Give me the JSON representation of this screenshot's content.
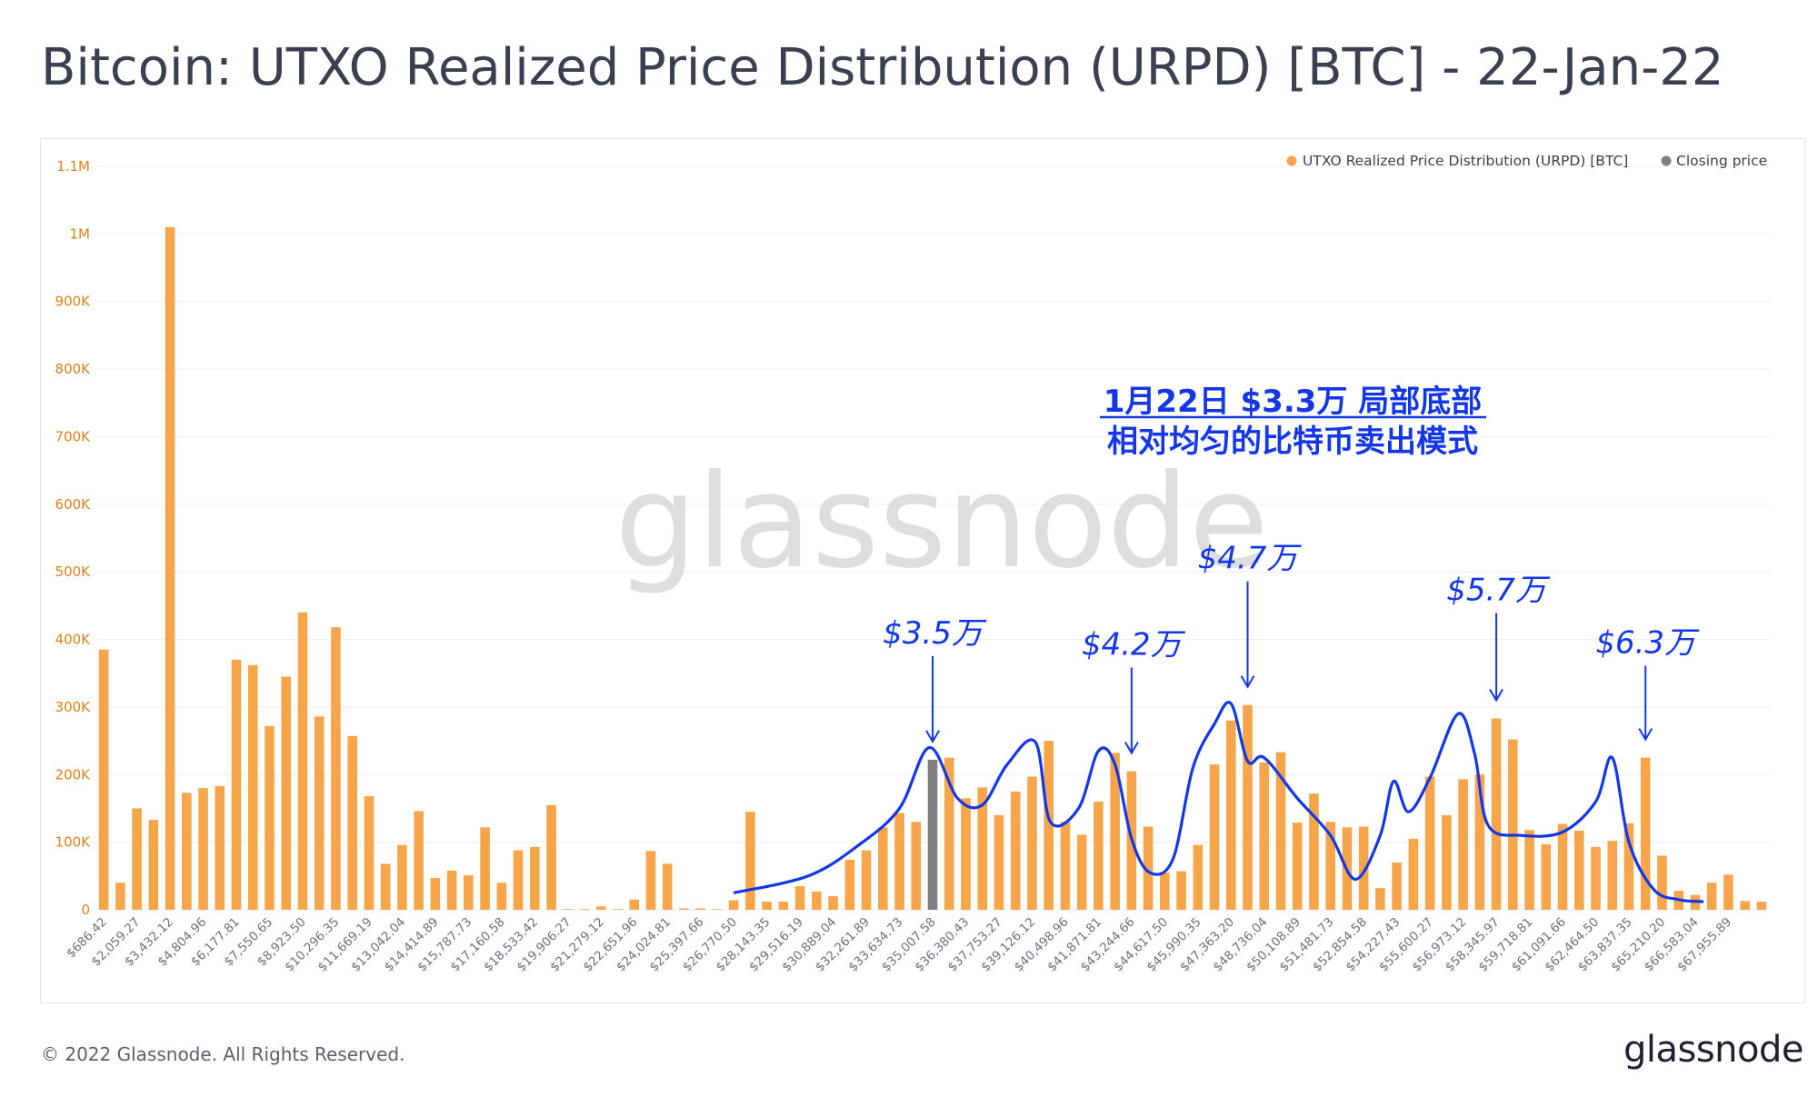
{
  "title": "Bitcoin: UTXO Realized Price Distribution (URPD) [BTC] - 22-Jan-22",
  "footer": {
    "copyright": "© 2022 Glassnode. All Rights Reserved.",
    "brand": "glassnode"
  },
  "watermark": "glassnode",
  "colors": {
    "bar": "#f7a54a",
    "closing": "#808080",
    "overlay": "#1236e8",
    "axis_text": "#e0801a"
  },
  "chart_data": {
    "type": "bar",
    "title": "Bitcoin: UTXO Realized Price Distribution (URPD) [BTC] - 22-Jan-22",
    "ylim": [
      0,
      1100000
    ],
    "yticks": [
      {
        "v": 0,
        "label": "0"
      },
      {
        "v": 100000,
        "label": "100K"
      },
      {
        "v": 200000,
        "label": "200K"
      },
      {
        "v": 300000,
        "label": "300K"
      },
      {
        "v": 400000,
        "label": "400K"
      },
      {
        "v": 500000,
        "label": "500K"
      },
      {
        "v": 600000,
        "label": "600K"
      },
      {
        "v": 700000,
        "label": "700K"
      },
      {
        "v": 800000,
        "label": "800K"
      },
      {
        "v": 900000,
        "label": "900K"
      },
      {
        "v": 1000000,
        "label": "1M"
      },
      {
        "v": 1100000,
        "label": "1.1M"
      }
    ],
    "legend": {
      "position": "top-right",
      "entries": [
        {
          "name": "UTXO Realized Price Distribution (URPD) [BTC]",
          "color": "#f7a54a"
        },
        {
          "name": "Closing price",
          "color": "#808080"
        }
      ]
    },
    "x_tick_labels": [
      "$686.42",
      "$2,059.27",
      "$3,432.12",
      "$4,804.96",
      "$6,177.81",
      "$7,550.65",
      "$8,923.50",
      "$10,296.35",
      "$11,669.19",
      "$13,042.04",
      "$14,414.89",
      "$15,787.73",
      "$17,160.58",
      "$18,533.42",
      "$19,906.27",
      "$21,279.12",
      "$22,651.96",
      "$24,024.81",
      "$25,397.66",
      "$26,770.50",
      "$28,143.35",
      "$29,516.19",
      "$30,889.04",
      "$32,261.89",
      "$33,634.73",
      "$35,007.58",
      "$36,380.43",
      "$37,753.27",
      "$39,126.12",
      "$40,498.96",
      "$41,871.81",
      "$43,244.66",
      "$44,617.50",
      "$45,990.35",
      "$47,363.20",
      "$48,736.04",
      "$50,108.89",
      "$51,481.73",
      "$52,854.58",
      "$54,227.43",
      "$55,600.27",
      "$56,973.12",
      "$58,345.97",
      "$59,718.81",
      "$61,091.66",
      "$62,464.50",
      "$63,837.35",
      "$65,210.20",
      "$66,583.04",
      "$67,955.89"
    ],
    "closing_price_index": 50,
    "values": [
      385000,
      40000,
      150000,
      133000,
      1010000,
      173000,
      180000,
      183000,
      370000,
      362000,
      272000,
      345000,
      440000,
      286000,
      418000,
      257000,
      168000,
      68000,
      96000,
      146000,
      47000,
      58000,
      51000,
      122000,
      40000,
      88000,
      93000,
      155000,
      1000,
      1000,
      5000,
      1000,
      15000,
      87000,
      68000,
      2000,
      2000,
      1000,
      14000,
      145000,
      12000,
      12000,
      35000,
      27000,
      20000,
      74000,
      88000,
      122000,
      143000,
      130000,
      222000,
      225000,
      165000,
      181000,
      140000,
      175000,
      197000,
      250000,
      130000,
      111000,
      160000,
      232000,
      205000,
      123000,
      55000,
      57000,
      96000,
      215000,
      280000,
      303000,
      218000,
      233000,
      129000,
      172000,
      130000,
      122000,
      123000,
      32000,
      70000,
      105000,
      197000,
      140000,
      193000,
      200000,
      283000,
      252000,
      118000,
      97000,
      127000,
      117000,
      93000,
      102000,
      128000,
      225000,
      80000,
      28000,
      22000,
      40000,
      52000,
      13000,
      12000
    ]
  },
  "annotations": {
    "headline_line1": "1月22日 $3.3万 局部底部",
    "headline_line2": "相对均匀的比特币卖出模式",
    "peaks": [
      {
        "label": "$3.5万",
        "bar_index": 50
      },
      {
        "label": "$4.2万",
        "bar_index": 62
      },
      {
        "label": "$4.7万",
        "bar_index": 69
      },
      {
        "label": "$5.7万",
        "bar_index": 84
      },
      {
        "label": "$6.3万",
        "bar_index": 93
      }
    ],
    "smoothed_curve": [
      {
        "x": 38.5,
        "y": 25000
      },
      {
        "x": 43,
        "y": 50000
      },
      {
        "x": 46,
        "y": 95000
      },
      {
        "x": 48.5,
        "y": 150000
      },
      {
        "x": 50.3,
        "y": 240000
      },
      {
        "x": 52,
        "y": 165000
      },
      {
        "x": 53.5,
        "y": 155000
      },
      {
        "x": 55,
        "y": 215000
      },
      {
        "x": 56.7,
        "y": 248000
      },
      {
        "x": 57.6,
        "y": 130000
      },
      {
        "x": 59.3,
        "y": 150000
      },
      {
        "x": 60.5,
        "y": 235000
      },
      {
        "x": 61.5,
        "y": 215000
      },
      {
        "x": 62.5,
        "y": 105000
      },
      {
        "x": 63.6,
        "y": 55000
      },
      {
        "x": 65,
        "y": 75000
      },
      {
        "x": 66.2,
        "y": 210000
      },
      {
        "x": 67.5,
        "y": 275000
      },
      {
        "x": 68.5,
        "y": 305000
      },
      {
        "x": 69.5,
        "y": 220000
      },
      {
        "x": 70.5,
        "y": 225000
      },
      {
        "x": 72.5,
        "y": 165000
      },
      {
        "x": 74.5,
        "y": 110000
      },
      {
        "x": 76,
        "y": 45000
      },
      {
        "x": 77.5,
        "y": 110000
      },
      {
        "x": 78.3,
        "y": 190000
      },
      {
        "x": 79.2,
        "y": 145000
      },
      {
        "x": 80.5,
        "y": 195000
      },
      {
        "x": 82.2,
        "y": 290000
      },
      {
        "x": 83.2,
        "y": 230000
      },
      {
        "x": 84,
        "y": 125000
      },
      {
        "x": 86,
        "y": 110000
      },
      {
        "x": 88.5,
        "y": 115000
      },
      {
        "x": 90.5,
        "y": 160000
      },
      {
        "x": 91.5,
        "y": 225000
      },
      {
        "x": 92.5,
        "y": 100000
      },
      {
        "x": 94,
        "y": 30000
      },
      {
        "x": 95.5,
        "y": 15000
      },
      {
        "x": 97,
        "y": 12000
      }
    ]
  }
}
